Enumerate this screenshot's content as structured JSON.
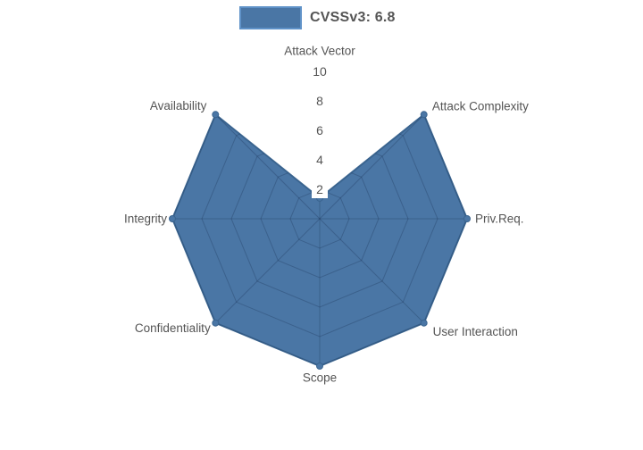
{
  "legend": {
    "label": "CVSSv3: 6.8"
  },
  "colors": {
    "background": "#ffffff",
    "fill": "#4a76a5",
    "stroke": "#3a648f",
    "legend_border": "#5f92c8",
    "grid_line": "rgba(10,25,55,0.22)",
    "axis_label_text": "#545454",
    "tick_text": "#555555",
    "tick_box": "#ffffff",
    "legend_text": "#555555"
  },
  "chart_data": {
    "type": "radar",
    "title": "",
    "categories": [
      "Attack Vector",
      "Attack Complexity",
      "Priv.Req.",
      "User Interaction",
      "Scope",
      "Confidentiality",
      "Integrity",
      "Availability"
    ],
    "series": [
      {
        "name": "CVSSv3: 6.8",
        "values": [
          1.4,
          10,
          10,
          10,
          10,
          10,
          10,
          10
        ]
      }
    ],
    "radial_ticks": [
      2,
      4,
      6,
      8,
      10
    ],
    "radial_range": [
      0,
      10
    ],
    "grid": "spider-web rings and spokes, visible only inside filled area",
    "legend_position": "top-center",
    "markers": true
  }
}
